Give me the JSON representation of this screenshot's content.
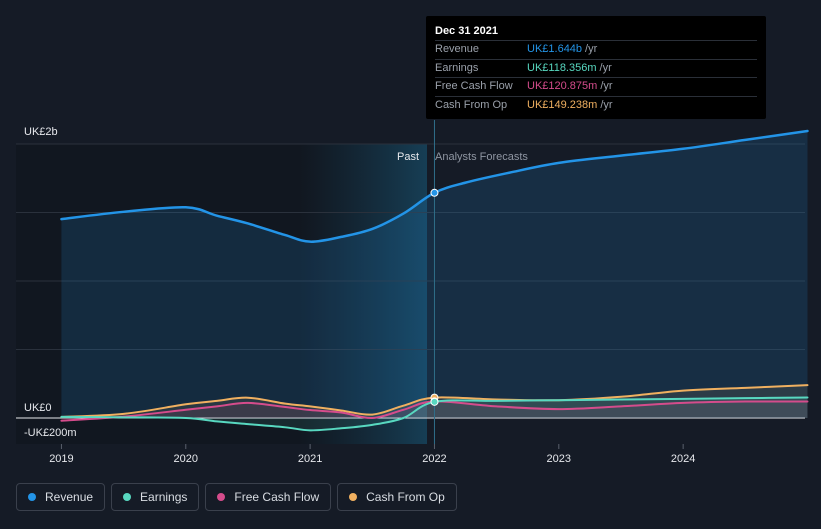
{
  "chart_data": {
    "type": "line",
    "title": "",
    "xlabel": "",
    "ylabel": "",
    "ylim": [
      -200,
      2000
    ],
    "y_axis_labels": [
      {
        "value": 2000,
        "label": "UK£2b"
      },
      {
        "value": 0,
        "label": "UK£0"
      },
      {
        "value": -200,
        "label": "-UK£200m"
      }
    ],
    "xlim": [
      2018.9,
      2024.98
    ],
    "x_ticks": [
      2019,
      2020,
      2021,
      2022,
      2023,
      2024
    ],
    "x_tick_labels": [
      "2019",
      "2020",
      "2021",
      "2022",
      "2023",
      "2024"
    ],
    "divider_x": 2022.0,
    "past_label": "Past",
    "forecast_label": "Analysts Forecasts",
    "series": [
      {
        "name": "Revenue",
        "color": "#2394e7",
        "points": [
          [
            2019.0,
            1452
          ],
          [
            2019.5,
            1505
          ],
          [
            2020.0,
            1538
          ],
          [
            2020.25,
            1477
          ],
          [
            2020.5,
            1420
          ],
          [
            2020.8,
            1335
          ],
          [
            2021.0,
            1287
          ],
          [
            2021.25,
            1322
          ],
          [
            2021.5,
            1380
          ],
          [
            2021.75,
            1492
          ],
          [
            2022.0,
            1644
          ],
          [
            2022.25,
            1718
          ],
          [
            2022.6,
            1790
          ],
          [
            2023.0,
            1862
          ],
          [
            2023.5,
            1915
          ],
          [
            2024.0,
            1965
          ],
          [
            2024.5,
            2030
          ],
          [
            2025.0,
            2095
          ]
        ]
      },
      {
        "name": "Earnings",
        "color": "#58d8c0",
        "points": [
          [
            2019.0,
            8
          ],
          [
            2019.5,
            5
          ],
          [
            2020.0,
            0
          ],
          [
            2020.25,
            -25
          ],
          [
            2020.5,
            -45
          ],
          [
            2020.8,
            -68
          ],
          [
            2021.0,
            -90
          ],
          [
            2021.25,
            -75
          ],
          [
            2021.5,
            -50
          ],
          [
            2021.75,
            0
          ],
          [
            2022.0,
            118
          ],
          [
            2022.5,
            125
          ],
          [
            2023.0,
            130
          ],
          [
            2023.5,
            135
          ],
          [
            2024.0,
            140
          ],
          [
            2024.5,
            145
          ],
          [
            2025.0,
            150
          ]
        ]
      },
      {
        "name": "Free Cash Flow",
        "color": "#d54c8c",
        "points": [
          [
            2019.0,
            -20
          ],
          [
            2019.5,
            10
          ],
          [
            2020.0,
            60
          ],
          [
            2020.25,
            85
          ],
          [
            2020.5,
            110
          ],
          [
            2020.8,
            80
          ],
          [
            2021.0,
            58
          ],
          [
            2021.25,
            40
          ],
          [
            2021.5,
            0
          ],
          [
            2021.75,
            60
          ],
          [
            2022.0,
            121
          ],
          [
            2022.5,
            85
          ],
          [
            2023.0,
            65
          ],
          [
            2023.5,
            85
          ],
          [
            2024.0,
            110
          ],
          [
            2024.5,
            120
          ],
          [
            2025.0,
            120
          ]
        ]
      },
      {
        "name": "Cash From Op",
        "color": "#f0b060",
        "points": [
          [
            2019.0,
            8
          ],
          [
            2019.5,
            30
          ],
          [
            2020.0,
            100
          ],
          [
            2020.25,
            125
          ],
          [
            2020.5,
            148
          ],
          [
            2020.8,
            105
          ],
          [
            2021.0,
            85
          ],
          [
            2021.25,
            55
          ],
          [
            2021.5,
            25
          ],
          [
            2021.75,
            90
          ],
          [
            2022.0,
            149
          ],
          [
            2022.5,
            135
          ],
          [
            2023.0,
            130
          ],
          [
            2023.5,
            155
          ],
          [
            2024.0,
            200
          ],
          [
            2024.5,
            220
          ],
          [
            2025.0,
            240
          ]
        ]
      }
    ]
  },
  "tooltip": {
    "date": "Dec 31 2021",
    "rows": [
      {
        "label": "Revenue",
        "value": "UK£1.644b",
        "unit": "/yr",
        "color": "#2394e7"
      },
      {
        "label": "Earnings",
        "value": "UK£118.356m",
        "unit": "/yr",
        "color": "#58d8c0"
      },
      {
        "label": "Free Cash Flow",
        "value": "UK£120.875m",
        "unit": "/yr",
        "color": "#d54c8c"
      },
      {
        "label": "Cash From Op",
        "value": "UK£149.238m",
        "unit": "/yr",
        "color": "#f0b060"
      }
    ]
  },
  "legend": [
    {
      "label": "Revenue",
      "color": "#2394e7"
    },
    {
      "label": "Earnings",
      "color": "#58d8c0"
    },
    {
      "label": "Free Cash Flow",
      "color": "#d54c8c"
    },
    {
      "label": "Cash From Op",
      "color": "#f0b060"
    }
  ]
}
